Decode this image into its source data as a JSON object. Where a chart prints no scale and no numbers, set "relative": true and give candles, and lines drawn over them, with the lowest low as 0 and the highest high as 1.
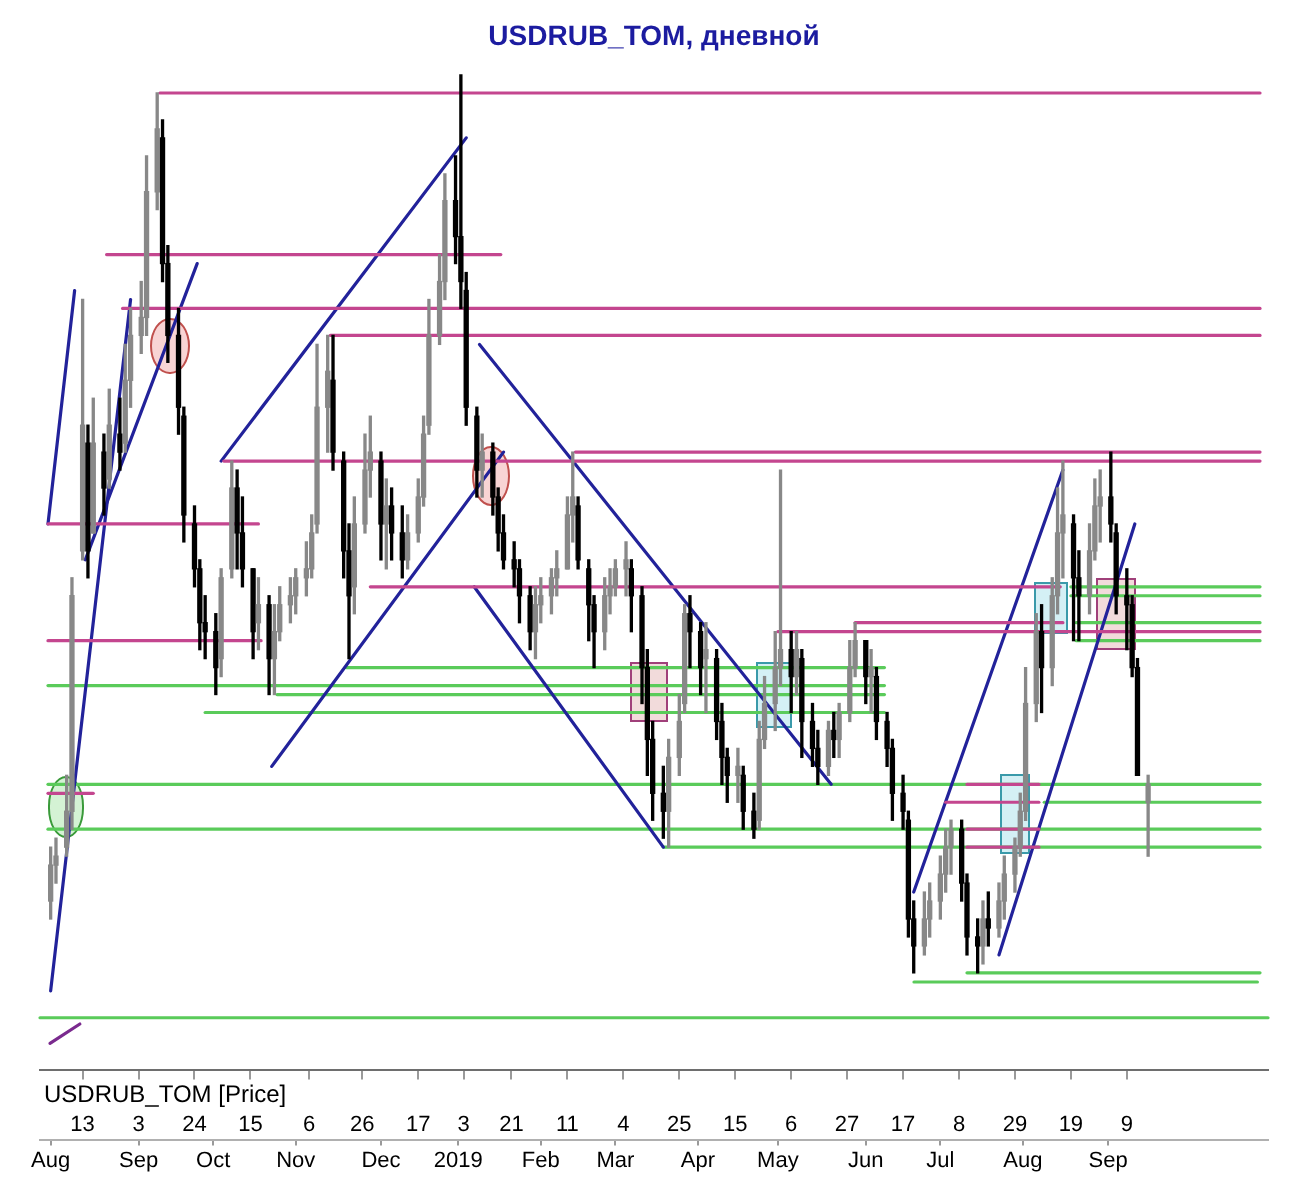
{
  "chart_data": {
    "type": "candlestick",
    "title": "USDRUB_TOM, дневной",
    "annotations": [
      "USDRUB_TOM [Price]"
    ],
    "relative": true,
    "xlim": [
      "2018-07-28",
      "2019-11-01"
    ],
    "xticks": [
      {
        "value": "2018-08-13",
        "label": "13"
      },
      {
        "value": "2018-09-03",
        "label": "3"
      },
      {
        "value": "2018-09-24",
        "label": "24"
      },
      {
        "value": "2018-10-15",
        "label": "15"
      },
      {
        "value": "2018-11-06",
        "label": "6"
      },
      {
        "value": "2018-11-26",
        "label": "26"
      },
      {
        "value": "2018-12-17",
        "label": "17"
      },
      {
        "value": "2019-01-03",
        "label": "3"
      },
      {
        "value": "2019-01-21",
        "label": "21"
      },
      {
        "value": "2019-02-11",
        "label": "11"
      },
      {
        "value": "2019-03-04",
        "label": "4"
      },
      {
        "value": "2019-03-25",
        "label": "25"
      },
      {
        "value": "2019-04-15",
        "label": "15"
      },
      {
        "value": "2019-05-06",
        "label": "6"
      },
      {
        "value": "2019-05-27",
        "label": "27"
      },
      {
        "value": "2019-06-17",
        "label": "17"
      },
      {
        "value": "2019-07-08",
        "label": "8"
      },
      {
        "value": "2019-07-29",
        "label": "29"
      },
      {
        "value": "2019-08-19",
        "label": "19"
      },
      {
        "value": "2019-09-09",
        "label": "9"
      }
    ],
    "x2lim": [
      "2018-07-28",
      "2019-11-01"
    ],
    "x2ticks": [
      {
        "value": "2018-08-01",
        "label": "Aug"
      },
      {
        "value": "2018-09-03",
        "label": "Sep"
      },
      {
        "value": "2018-10-01",
        "label": "Oct"
      },
      {
        "value": "2018-11-01",
        "label": "Nov"
      },
      {
        "value": "2018-12-03",
        "label": "Dec"
      },
      {
        "value": "2019-01-01",
        "label": "2019"
      },
      {
        "value": "2019-02-01",
        "label": "Feb"
      },
      {
        "value": "2019-03-01",
        "label": "Mar"
      },
      {
        "value": "2019-04-01",
        "label": "Apr"
      },
      {
        "value": "2019-05-01",
        "label": "May"
      },
      {
        "value": "2019-06-03",
        "label": "Jun"
      },
      {
        "value": "2019-07-01",
        "label": "Jul"
      },
      {
        "value": "2019-08-01",
        "label": "Aug"
      },
      {
        "value": "2019-09-02",
        "label": "Sep"
      }
    ],
    "x": [
      "2018-08-01",
      "2018-08-03",
      "2018-08-07",
      "2018-08-09",
      "2018-08-13",
      "2018-08-15",
      "2018-08-17",
      "2018-08-21",
      "2018-08-23",
      "2018-08-27",
      "2018-08-29",
      "2018-08-31",
      "2018-09-04",
      "2018-09-06",
      "2018-09-10",
      "2018-09-12",
      "2018-09-14",
      "2018-09-18",
      "2018-09-20",
      "2018-09-24",
      "2018-09-26",
      "2018-09-28",
      "2018-10-02",
      "2018-10-04",
      "2018-10-08",
      "2018-10-10",
      "2018-10-12",
      "2018-10-16",
      "2018-10-18",
      "2018-10-22",
      "2018-10-24",
      "2018-10-26",
      "2018-10-30",
      "2018-11-01",
      "2018-11-05",
      "2018-11-07",
      "2018-11-09",
      "2018-11-13",
      "2018-11-15",
      "2018-11-19",
      "2018-11-21",
      "2018-11-23",
      "2018-11-27",
      "2018-11-29",
      "2018-12-03",
      "2018-12-05",
      "2018-12-07",
      "2018-12-11",
      "2018-12-13",
      "2018-12-17",
      "2018-12-19",
      "2018-12-21",
      "2018-12-25",
      "2018-12-27",
      "2018-12-31",
      "2019-01-02",
      "2019-01-04",
      "2019-01-08",
      "2019-01-10",
      "2019-01-14",
      "2019-01-16",
      "2019-01-18",
      "2019-01-22",
      "2019-01-24",
      "2019-01-28",
      "2019-01-30",
      "2019-02-01",
      "2019-02-05",
      "2019-02-07",
      "2019-02-11",
      "2019-02-13",
      "2019-02-15",
      "2019-02-19",
      "2019-02-21",
      "2019-02-25",
      "2019-02-27",
      "2019-03-01",
      "2019-03-05",
      "2019-03-07",
      "2019-03-11",
      "2019-03-13",
      "2019-03-15",
      "2019-03-19",
      "2019-03-21",
      "2019-03-25",
      "2019-03-27",
      "2019-03-29",
      "2019-04-02",
      "2019-04-04",
      "2019-04-08",
      "2019-04-10",
      "2019-04-12",
      "2019-04-16",
      "2019-04-18",
      "2019-04-22",
      "2019-04-24",
      "2019-04-26",
      "2019-04-30",
      "2019-05-02",
      "2019-05-06",
      "2019-05-08",
      "2019-05-10",
      "2019-05-14",
      "2019-05-16",
      "2019-05-20",
      "2019-05-22",
      "2019-05-24",
      "2019-05-28",
      "2019-05-30",
      "2019-06-03",
      "2019-06-05",
      "2019-06-07",
      "2019-06-11",
      "2019-06-13",
      "2019-06-17",
      "2019-06-19",
      "2019-06-21",
      "2019-06-25",
      "2019-06-27",
      "2019-07-01",
      "2019-07-03",
      "2019-07-05",
      "2019-07-09",
      "2019-07-11",
      "2019-07-15",
      "2019-07-17",
      "2019-07-19",
      "2019-07-23",
      "2019-07-25",
      "2019-07-29",
      "2019-07-31",
      "2019-08-02",
      "2019-08-06",
      "2019-08-08",
      "2019-08-12",
      "2019-08-14",
      "2019-08-16",
      "2019-08-20",
      "2019-08-22",
      "2019-08-26",
      "2019-08-28",
      "2019-08-30",
      "2019-09-03",
      "2019-09-05",
      "2019-09-09",
      "2019-09-11",
      "2019-09-13",
      "2019-09-17"
    ],
    "ohlc": [
      [
        0.08,
        0.14,
        0.06,
        0.12
      ],
      [
        0.12,
        0.15,
        0.1,
        0.13
      ],
      [
        0.14,
        0.22,
        0.13,
        0.18
      ],
      [
        0.18,
        0.44,
        0.16,
        0.42
      ],
      [
        0.47,
        0.75,
        0.46,
        0.61
      ],
      [
        0.59,
        0.61,
        0.44,
        0.47
      ],
      [
        0.49,
        0.64,
        0.49,
        0.59
      ],
      [
        0.58,
        0.6,
        0.51,
        0.54
      ],
      [
        0.55,
        0.65,
        0.54,
        0.61
      ],
      [
        0.6,
        0.64,
        0.56,
        0.58
      ],
      [
        0.59,
        0.7,
        0.58,
        0.66
      ],
      [
        0.66,
        0.74,
        0.63,
        0.71
      ],
      [
        0.71,
        0.77,
        0.69,
        0.73
      ],
      [
        0.73,
        0.91,
        0.71,
        0.87
      ],
      [
        0.87,
        0.98,
        0.85,
        0.94
      ],
      [
        0.93,
        0.95,
        0.77,
        0.79
      ],
      [
        0.79,
        0.81,
        0.68,
        0.71
      ],
      [
        0.71,
        0.74,
        0.6,
        0.63
      ],
      [
        0.62,
        0.63,
        0.48,
        0.51
      ],
      [
        0.5,
        0.52,
        0.43,
        0.45
      ],
      [
        0.45,
        0.46,
        0.36,
        0.39
      ],
      [
        0.39,
        0.42,
        0.35,
        0.38
      ],
      [
        0.38,
        0.4,
        0.31,
        0.34
      ],
      [
        0.35,
        0.45,
        0.33,
        0.44
      ],
      [
        0.45,
        0.57,
        0.44,
        0.54
      ],
      [
        0.54,
        0.56,
        0.45,
        0.49
      ],
      [
        0.49,
        0.53,
        0.43,
        0.45
      ],
      [
        0.45,
        0.45,
        0.35,
        0.38
      ],
      [
        0.39,
        0.44,
        0.36,
        0.41
      ],
      [
        0.41,
        0.42,
        0.31,
        0.35
      ],
      [
        0.35,
        0.41,
        0.31,
        0.38
      ],
      [
        0.38,
        0.43,
        0.37,
        0.41
      ],
      [
        0.41,
        0.44,
        0.39,
        0.42
      ],
      [
        0.42,
        0.45,
        0.4,
        0.44
      ],
      [
        0.44,
        0.48,
        0.42,
        0.45
      ],
      [
        0.45,
        0.51,
        0.44,
        0.49
      ],
      [
        0.5,
        0.7,
        0.49,
        0.63
      ],
      [
        0.63,
        0.71,
        0.58,
        0.67
      ],
      [
        0.66,
        0.71,
        0.56,
        0.58
      ],
      [
        0.57,
        0.58,
        0.44,
        0.47
      ],
      [
        0.47,
        0.5,
        0.35,
        0.42
      ],
      [
        0.43,
        0.53,
        0.4,
        0.5
      ],
      [
        0.5,
        0.6,
        0.49,
        0.56
      ],
      [
        0.56,
        0.62,
        0.53,
        0.58
      ],
      [
        0.57,
        0.58,
        0.46,
        0.5
      ],
      [
        0.5,
        0.55,
        0.45,
        0.52
      ],
      [
        0.52,
        0.54,
        0.46,
        0.49
      ],
      [
        0.49,
        0.52,
        0.44,
        0.46
      ],
      [
        0.46,
        0.51,
        0.45,
        0.49
      ],
      [
        0.49,
        0.55,
        0.48,
        0.53
      ],
      [
        0.53,
        0.62,
        0.52,
        0.6
      ],
      [
        0.61,
        0.75,
        0.6,
        0.71
      ],
      [
        0.71,
        0.8,
        0.7,
        0.77
      ],
      [
        0.77,
        0.89,
        0.75,
        0.86
      ],
      [
        0.86,
        0.91,
        0.79,
        0.82
      ],
      [
        0.82,
        1.0,
        0.74,
        0.77
      ],
      [
        0.76,
        0.78,
        0.61,
        0.63
      ],
      [
        0.62,
        0.63,
        0.53,
        0.56
      ],
      [
        0.56,
        0.6,
        0.53,
        0.58
      ],
      [
        0.58,
        0.59,
        0.51,
        0.53
      ],
      [
        0.53,
        0.54,
        0.47,
        0.49
      ],
      [
        0.49,
        0.51,
        0.45,
        0.46
      ],
      [
        0.46,
        0.48,
        0.43,
        0.45
      ],
      [
        0.45,
        0.46,
        0.39,
        0.42
      ],
      [
        0.42,
        0.43,
        0.36,
        0.38
      ],
      [
        0.38,
        0.43,
        0.35,
        0.41
      ],
      [
        0.41,
        0.44,
        0.39,
        0.42
      ],
      [
        0.42,
        0.45,
        0.4,
        0.44
      ],
      [
        0.44,
        0.47,
        0.42,
        0.45
      ],
      [
        0.45,
        0.53,
        0.45,
        0.51
      ],
      [
        0.51,
        0.58,
        0.48,
        0.53
      ],
      [
        0.52,
        0.53,
        0.45,
        0.46
      ],
      [
        0.45,
        0.46,
        0.37,
        0.41
      ],
      [
        0.41,
        0.42,
        0.34,
        0.38
      ],
      [
        0.38,
        0.44,
        0.36,
        0.42
      ],
      [
        0.42,
        0.45,
        0.4,
        0.43
      ],
      [
        0.43,
        0.46,
        0.42,
        0.45
      ],
      [
        0.45,
        0.48,
        0.42,
        0.46
      ],
      [
        0.45,
        0.46,
        0.38,
        0.42
      ],
      [
        0.42,
        0.43,
        0.3,
        0.34
      ],
      [
        0.34,
        0.36,
        0.22,
        0.26
      ],
      [
        0.26,
        0.28,
        0.17,
        0.2
      ],
      [
        0.2,
        0.23,
        0.15,
        0.18
      ],
      [
        0.18,
        0.26,
        0.14,
        0.24
      ],
      [
        0.24,
        0.31,
        0.22,
        0.28
      ],
      [
        0.3,
        0.41,
        0.29,
        0.4
      ],
      [
        0.4,
        0.42,
        0.34,
        0.38
      ],
      [
        0.38,
        0.39,
        0.31,
        0.34
      ],
      [
        0.35,
        0.39,
        0.29,
        0.36
      ],
      [
        0.35,
        0.36,
        0.26,
        0.28
      ],
      [
        0.28,
        0.3,
        0.21,
        0.24
      ],
      [
        0.24,
        0.25,
        0.19,
        0.22
      ],
      [
        0.22,
        0.25,
        0.19,
        0.23
      ],
      [
        0.22,
        0.23,
        0.16,
        0.18
      ],
      [
        0.18,
        0.2,
        0.15,
        0.16
      ],
      [
        0.17,
        0.28,
        0.16,
        0.26
      ],
      [
        0.26,
        0.33,
        0.25,
        0.3
      ],
      [
        0.3,
        0.38,
        0.27,
        0.34
      ],
      [
        0.34,
        0.56,
        0.32,
        0.36
      ],
      [
        0.36,
        0.38,
        0.29,
        0.33
      ],
      [
        0.33,
        0.38,
        0.31,
        0.36
      ],
      [
        0.35,
        0.36,
        0.24,
        0.28
      ],
      [
        0.28,
        0.3,
        0.23,
        0.25
      ],
      [
        0.25,
        0.27,
        0.21,
        0.23
      ],
      [
        0.23,
        0.28,
        0.22,
        0.27
      ],
      [
        0.27,
        0.29,
        0.24,
        0.26
      ],
      [
        0.26,
        0.3,
        0.24,
        0.29
      ],
      [
        0.29,
        0.37,
        0.28,
        0.34
      ],
      [
        0.34,
        0.39,
        0.33,
        0.37
      ],
      [
        0.37,
        0.37,
        0.3,
        0.33
      ],
      [
        0.33,
        0.36,
        0.29,
        0.34
      ],
      [
        0.33,
        0.34,
        0.26,
        0.28
      ],
      [
        0.28,
        0.29,
        0.23,
        0.25
      ],
      [
        0.25,
        0.26,
        0.17,
        0.2
      ],
      [
        0.2,
        0.22,
        0.16,
        0.18
      ],
      [
        0.17,
        0.18,
        0.04,
        0.06
      ],
      [
        0.06,
        0.08,
        0.0,
        0.03
      ],
      [
        0.03,
        0.09,
        0.02,
        0.06
      ],
      [
        0.06,
        0.1,
        0.04,
        0.08
      ],
      [
        0.08,
        0.13,
        0.06,
        0.11
      ],
      [
        0.11,
        0.16,
        0.09,
        0.14
      ],
      [
        0.14,
        0.17,
        0.11,
        0.16
      ],
      [
        0.16,
        0.17,
        0.08,
        0.1
      ],
      [
        0.1,
        0.11,
        0.02,
        0.04
      ],
      [
        0.04,
        0.06,
        0.0,
        0.03
      ],
      [
        0.03,
        0.08,
        0.01,
        0.06
      ],
      [
        0.06,
        0.09,
        0.03,
        0.05
      ],
      [
        0.05,
        0.1,
        0.04,
        0.08
      ],
      [
        0.08,
        0.13,
        0.06,
        0.11
      ],
      [
        0.11,
        0.15,
        0.09,
        0.14
      ],
      [
        0.14,
        0.2,
        0.13,
        0.18
      ],
      [
        0.18,
        0.34,
        0.17,
        0.3
      ],
      [
        0.3,
        0.4,
        0.28,
        0.38
      ],
      [
        0.38,
        0.41,
        0.29,
        0.34
      ],
      [
        0.34,
        0.44,
        0.32,
        0.42
      ],
      [
        0.42,
        0.54,
        0.4,
        0.49
      ],
      [
        0.49,
        0.57,
        0.44,
        0.51
      ],
      [
        0.5,
        0.51,
        0.37,
        0.44
      ],
      [
        0.44,
        0.47,
        0.37,
        0.42
      ],
      [
        0.42,
        0.5,
        0.4,
        0.47
      ],
      [
        0.47,
        0.55,
        0.46,
        0.52
      ],
      [
        0.52,
        0.56,
        0.48,
        0.53
      ],
      [
        0.53,
        0.58,
        0.48,
        0.5
      ],
      [
        0.49,
        0.5,
        0.4,
        0.42
      ],
      [
        0.42,
        0.45,
        0.36,
        0.41
      ],
      [
        0.41,
        0.42,
        0.33,
        0.34
      ],
      [
        0.34,
        0.35,
        0.22,
        0.22
      ],
      [
        0.19,
        0.22,
        0.13,
        0.21
      ]
    ],
    "colors": [
      "#888888",
      "#888888",
      "#888888",
      "#888888",
      "#888888",
      "#000000",
      "#888888",
      "#000000",
      "#888888",
      "#000000",
      "#888888",
      "#888888",
      "#888888",
      "#888888",
      "#888888",
      "#000000",
      "#000000",
      "#000000",
      "#000000",
      "#000000",
      "#000000",
      "#000000",
      "#000000",
      "#888888",
      "#888888",
      "#000000",
      "#000000",
      "#000000",
      "#888888",
      "#000000",
      "#888888",
      "#888888",
      "#888888",
      "#888888",
      "#888888",
      "#888888",
      "#888888",
      "#888888",
      "#000000",
      "#000000",
      "#000000",
      "#888888",
      "#888888",
      "#888888",
      "#000000",
      "#888888",
      "#000000",
      "#000000",
      "#888888",
      "#888888",
      "#888888",
      "#888888",
      "#888888",
      "#888888",
      "#000000",
      "#000000",
      "#000000",
      "#000000",
      "#888888",
      "#000000",
      "#000000",
      "#000000",
      "#000000",
      "#000000",
      "#000000",
      "#888888",
      "#888888",
      "#888888",
      "#888888",
      "#888888",
      "#888888",
      "#000000",
      "#000000",
      "#000000",
      "#888888",
      "#888888",
      "#888888",
      "#888888",
      "#000000",
      "#000000",
      "#000000",
      "#000000",
      "#000000",
      "#888888",
      "#888888",
      "#888888",
      "#000000",
      "#000000",
      "#888888",
      "#000000",
      "#000000",
      "#000000",
      "#888888",
      "#000000",
      "#000000",
      "#888888",
      "#888888",
      "#888888",
      "#888888",
      "#000000",
      "#888888",
      "#000000",
      "#000000",
      "#000000",
      "#888888",
      "#000000",
      "#888888",
      "#888888",
      "#888888",
      "#000000",
      "#888888",
      "#000000",
      "#000000",
      "#000000",
      "#000000",
      "#000000",
      "#000000",
      "#888888",
      "#888888",
      "#888888",
      "#888888",
      "#888888",
      "#000000",
      "#000000",
      "#000000",
      "#888888",
      "#000000",
      "#888888",
      "#888888",
      "#888888",
      "#888888",
      "#888888",
      "#888888",
      "#000000",
      "#888888",
      "#888888",
      "#888888",
      "#000000",
      "#000000",
      "#888888",
      "#888888",
      "#888888",
      "#000000",
      "#000000",
      "#000000",
      "#000000",
      "#000000",
      "#888888"
    ],
    "ref_lines": [
      {
        "axis": "y",
        "value": -0.05,
        "color": "#5acb5a"
      }
    ],
    "series": [
      {
        "type": "line",
        "x": [
          "2018-09-11",
          "2019-10-29"
        ],
        "values": [
          0.98,
          0.98
        ],
        "color": "#c4468f"
      },
      {
        "type": "line",
        "x": [
          "2018-08-22",
          "2019-01-17"
        ],
        "values": [
          0.8,
          0.8
        ],
        "color": "#c4468f"
      },
      {
        "type": "line",
        "x": [
          "2018-08-28",
          "2019-10-29"
        ],
        "values": [
          0.74,
          0.74
        ],
        "color": "#c4468f"
      },
      {
        "type": "line",
        "x": [
          "2018-11-14",
          "2019-10-29"
        ],
        "values": [
          0.71,
          0.71
        ],
        "color": "#c4468f"
      },
      {
        "type": "line",
        "x": [
          "2018-10-05",
          "2019-10-29"
        ],
        "values": [
          0.57,
          0.57
        ],
        "color": "#c4468f"
      },
      {
        "type": "line",
        "x": [
          "2019-02-14",
          "2019-10-29"
        ],
        "values": [
          0.58,
          0.58
        ],
        "color": "#c4468f"
      },
      {
        "type": "line",
        "x": [
          "2018-07-31",
          "2018-10-18"
        ],
        "values": [
          0.5,
          0.5
        ],
        "color": "#c4468f"
      },
      {
        "type": "line",
        "x": [
          "2018-11-29",
          "2019-08-15"
        ],
        "values": [
          0.43,
          0.43
        ],
        "color": "#c4468f"
      },
      {
        "type": "line",
        "x": [
          "2018-07-31",
          "2018-10-19"
        ],
        "values": [
          0.37,
          0.37
        ],
        "color": "#c4468f"
      },
      {
        "type": "line",
        "x": [
          "2019-05-01",
          "2019-10-29"
        ],
        "values": [
          0.38,
          0.38
        ],
        "color": "#c4468f"
      },
      {
        "type": "line",
        "x": [
          "2019-05-30",
          "2019-08-16"
        ],
        "values": [
          0.39,
          0.39
        ],
        "color": "#c4468f"
      },
      {
        "type": "line",
        "x": [
          "2019-07-11",
          "2019-08-07"
        ],
        "values": [
          0.21,
          0.21
        ],
        "color": "#c4468f"
      },
      {
        "type": "line",
        "x": [
          "2019-07-03",
          "2019-08-07"
        ],
        "values": [
          0.19,
          0.19
        ],
        "color": "#c4468f"
      },
      {
        "type": "line",
        "x": [
          "2019-07-11",
          "2019-08-07"
        ],
        "values": [
          0.16,
          0.16
        ],
        "color": "#c4468f"
      },
      {
        "type": "line",
        "x": [
          "2019-07-11",
          "2019-08-07"
        ],
        "values": [
          0.14,
          0.14
        ],
        "color": "#c4468f"
      },
      {
        "type": "line",
        "x": [
          "2018-07-31",
          "2018-08-17"
        ],
        "values": [
          0.2,
          0.2
        ],
        "color": "#c4468f"
      },
      {
        "type": "line",
        "x": [
          "2018-07-31",
          "2018-08-10"
        ],
        "values": [
          0.5,
          0.76
        ],
        "color": "#22229a"
      },
      {
        "type": "line",
        "x": [
          "2018-08-01",
          "2018-08-31"
        ],
        "values": [
          -0.02,
          0.75
        ],
        "color": "#22229a"
      },
      {
        "type": "line",
        "x": [
          "2018-08-14",
          "2018-09-25"
        ],
        "values": [
          0.46,
          0.79
        ],
        "color": "#22229a"
      },
      {
        "type": "line",
        "x": [
          "2018-10-04",
          "2019-01-04"
        ],
        "values": [
          0.57,
          0.93
        ],
        "color": "#22229a"
      },
      {
        "type": "line",
        "x": [
          "2018-10-23",
          "2019-01-18"
        ],
        "values": [
          0.23,
          0.58
        ],
        "color": "#22229a"
      },
      {
        "type": "line",
        "x": [
          "2019-01-09",
          "2019-05-21"
        ],
        "values": [
          0.7,
          0.21
        ],
        "color": "#22229a"
      },
      {
        "type": "line",
        "x": [
          "2019-01-07",
          "2019-03-19"
        ],
        "values": [
          0.43,
          0.14
        ],
        "color": "#22229a"
      },
      {
        "type": "line",
        "x": [
          "2019-06-21",
          "2019-08-16"
        ],
        "values": [
          0.09,
          0.56
        ],
        "color": "#22229a"
      },
      {
        "type": "line",
        "x": [
          "2019-07-23",
          "2019-09-12"
        ],
        "values": [
          0.02,
          0.5
        ],
        "color": "#22229a"
      },
      {
        "type": "line",
        "x": [
          "2018-07-31",
          "2019-06-10"
        ],
        "values": [
          0.32,
          0.32
        ],
        "color": "#5acb5a"
      },
      {
        "type": "line",
        "x": [
          "2018-11-20",
          "2019-06-10"
        ],
        "values": [
          0.34,
          0.34
        ],
        "color": "#5acb5a"
      },
      {
        "type": "line",
        "x": [
          "2018-10-25",
          "2019-06-10"
        ],
        "values": [
          0.31,
          0.31
        ],
        "color": "#5acb5a"
      },
      {
        "type": "line",
        "x": [
          "2018-09-28",
          "2019-06-10"
        ],
        "values": [
          0.29,
          0.29
        ],
        "color": "#5acb5a"
      },
      {
        "type": "line",
        "x": [
          "2018-07-31",
          "2019-10-29"
        ],
        "values": [
          0.21,
          0.21
        ],
        "color": "#5acb5a"
      },
      {
        "type": "line",
        "x": [
          "2018-07-31",
          "2019-10-29"
        ],
        "values": [
          0.16,
          0.16
        ],
        "color": "#5acb5a"
      },
      {
        "type": "line",
        "x": [
          "2019-03-19",
          "2019-10-29"
        ],
        "values": [
          0.14,
          0.14
        ],
        "color": "#5acb5a"
      },
      {
        "type": "line",
        "x": [
          "2019-08-09",
          "2019-10-29"
        ],
        "values": [
          0.19,
          0.19
        ],
        "color": "#5acb5a"
      },
      {
        "type": "line",
        "x": [
          "2019-08-19",
          "2019-10-29"
        ],
        "values": [
          0.43,
          0.43
        ],
        "color": "#5acb5a"
      },
      {
        "type": "line",
        "x": [
          "2019-08-19",
          "2019-10-29"
        ],
        "values": [
          0.42,
          0.42
        ],
        "color": "#5acb5a"
      },
      {
        "type": "line",
        "x": [
          "2019-08-21",
          "2019-10-29"
        ],
        "values": [
          0.39,
          0.39
        ],
        "color": "#5acb5a"
      },
      {
        "type": "line",
        "x": [
          "2019-08-21",
          "2019-10-29"
        ],
        "values": [
          0.37,
          0.37
        ],
        "color": "#5acb5a"
      },
      {
        "type": "line",
        "x": [
          "2019-07-11",
          "2019-10-29"
        ],
        "values": [
          0.0,
          0.0
        ],
        "color": "#5acb5a"
      }
    ]
  }
}
